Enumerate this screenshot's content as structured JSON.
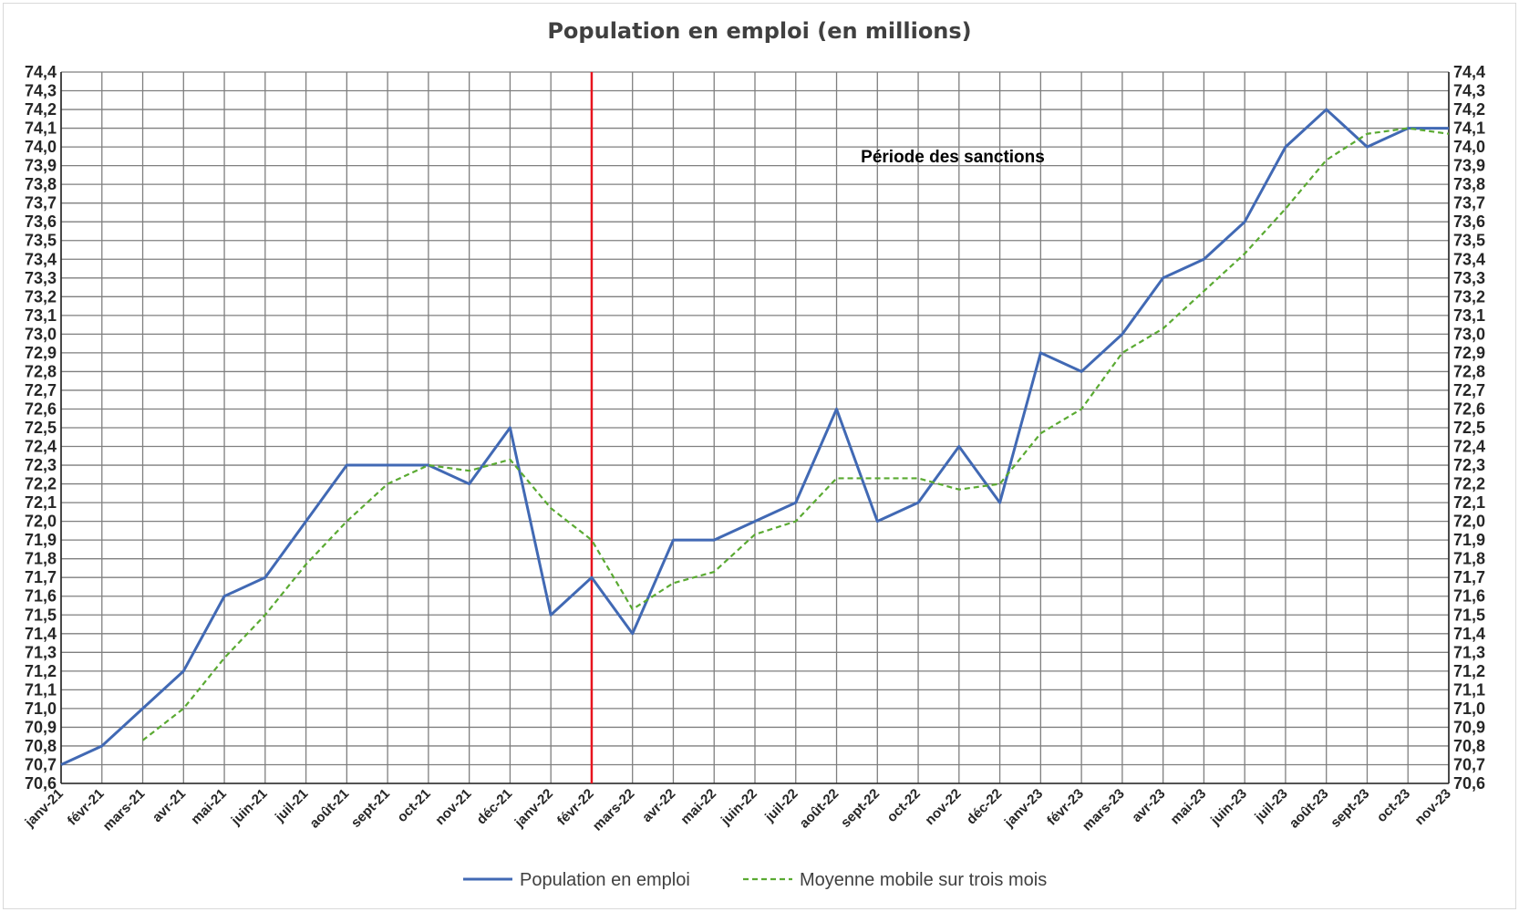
{
  "chart_data": {
    "type": "line",
    "title": "Population en emploi (en millions)",
    "xlabel": "",
    "ylabel": "",
    "ylim": [
      70.6,
      74.4
    ],
    "ytick_step": 0.1,
    "y_axes": [
      "left",
      "right"
    ],
    "grid": true,
    "legend_position": "bottom",
    "categories": [
      "janv-21",
      "févr-21",
      "mars-21",
      "avr-21",
      "mai-21",
      "juin-21",
      "juil-21",
      "août-21",
      "sept-21",
      "oct-21",
      "nov-21",
      "déc-21",
      "janv-22",
      "févr-22",
      "mars-22",
      "avr-22",
      "mai-22",
      "juin-22",
      "juil-22",
      "août-22",
      "sept-22",
      "oct-22",
      "nov-22",
      "déc-22",
      "janv-23",
      "févr-23",
      "mars-23",
      "avr-23",
      "mai-23",
      "juin-23",
      "juil-23",
      "août-23",
      "sept-23",
      "oct-23",
      "nov-23"
    ],
    "series": [
      {
        "name": "Population en emploi",
        "color": "#4169b4",
        "style": "solid",
        "values": [
          70.7,
          70.8,
          71.0,
          71.2,
          71.6,
          71.7,
          72.0,
          72.3,
          72.3,
          72.3,
          72.2,
          72.5,
          71.5,
          71.7,
          71.4,
          71.9,
          71.9,
          72.0,
          72.1,
          72.6,
          72.0,
          72.1,
          72.4,
          72.1,
          72.9,
          72.8,
          73.0,
          73.3,
          73.4,
          73.6,
          74.0,
          74.2,
          74.0,
          74.1,
          74.1
        ]
      },
      {
        "name": "Moyenne mobile sur trois mois",
        "color": "#5aaa32",
        "style": "dashed",
        "values": [
          null,
          null,
          70.83,
          71.0,
          71.27,
          71.5,
          71.77,
          72.0,
          72.2,
          72.3,
          72.27,
          72.33,
          72.07,
          71.9,
          71.53,
          71.67,
          71.73,
          71.93,
          72.0,
          72.23,
          72.23,
          72.23,
          72.17,
          72.2,
          72.47,
          72.6,
          72.9,
          73.03,
          73.23,
          73.43,
          73.67,
          73.93,
          74.07,
          74.1,
          74.07
        ]
      }
    ],
    "vertical_marker": {
      "category": "févr-22",
      "color": "#e8141e"
    },
    "annotations": [
      {
        "text": "Période des sanctions"
      }
    ]
  }
}
